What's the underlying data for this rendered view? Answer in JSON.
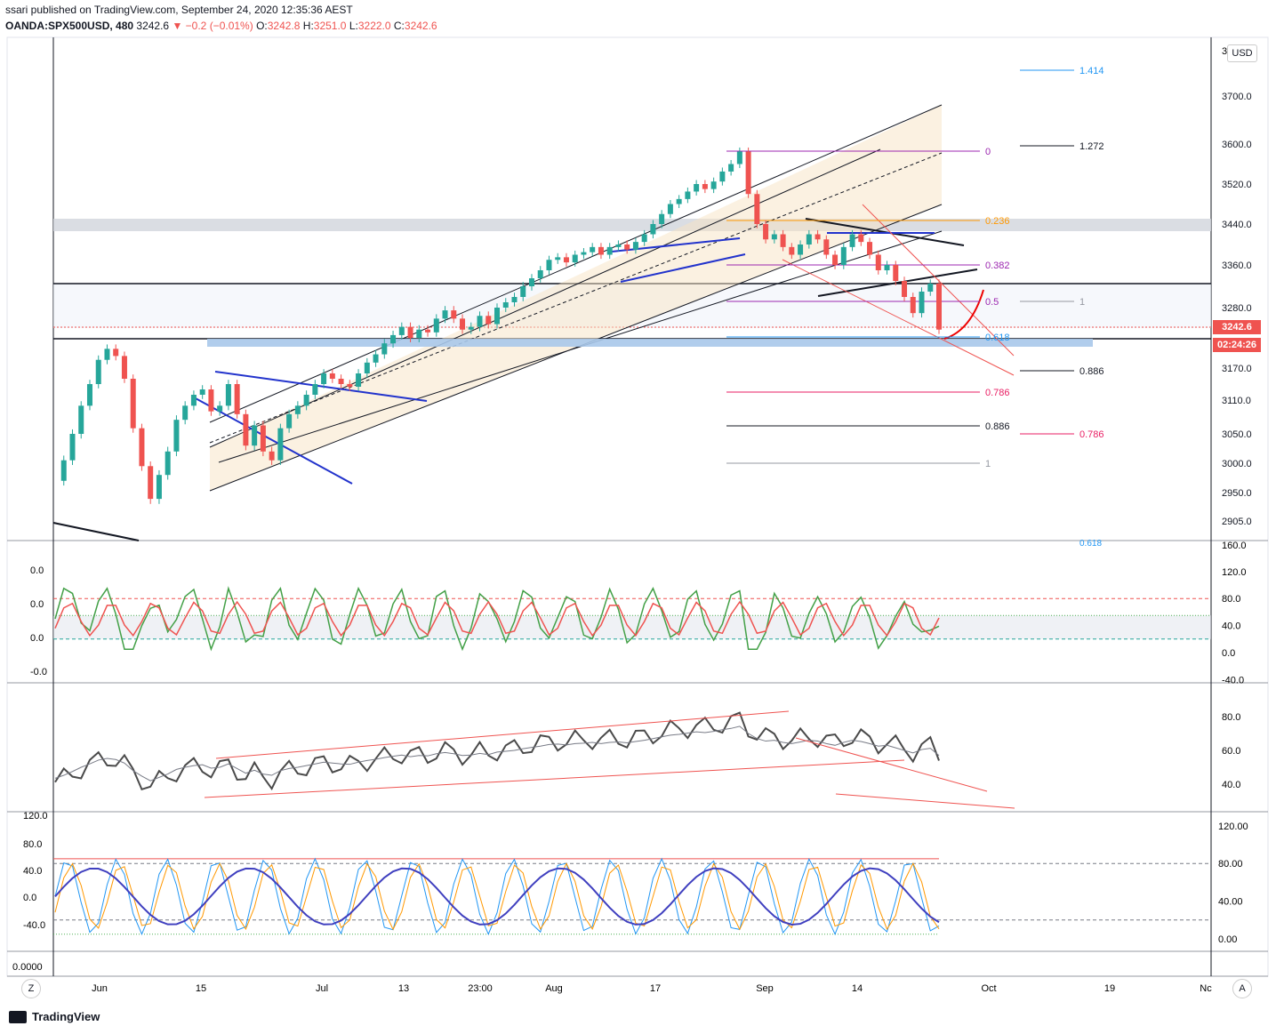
{
  "header": {
    "published": "ssari published on TradingView.com, September 24, 2020 12:35:36 AEST",
    "symbol": "OANDA:SPX500USD, 480",
    "last": "3242.6",
    "change": "▼ −0.2 (−0.01%)",
    "o_label": "O:",
    "o": "3242.8",
    "h_label": "H:",
    "h": "3251.0",
    "l_label": "L:",
    "l": "3222.0",
    "c_label": "C:",
    "c": "3242.6"
  },
  "currency": "USD",
  "price_tag": "3242.6",
  "timer_tag": "02:24:26",
  "brand": "TradingView",
  "corner_left": "Z",
  "corner_right": "A",
  "colors": {
    "up": "#26a69a",
    "down": "#ef5350",
    "channel": "#f8e3c4",
    "support": "#a9c8ea",
    "fib_purple": "#9c27b0",
    "fib_orange": "#ff9800",
    "fib_pink": "#e91e63",
    "fib_blue": "#2196f3"
  },
  "chart_data": [
    {
      "type": "candlestick",
      "pane": "price",
      "yticks": [
        "3700.0",
        "3600.0",
        "3520.0",
        "3440.0",
        "3360.0",
        "3280.0",
        "3170.0",
        "3110.0",
        "3050.0",
        "3000.0",
        "2950.0",
        "2905.0"
      ],
      "y_top_partial": "3",
      "xticks": [
        "Jun",
        "15",
        "Jul",
        "13",
        "23:00",
        "Aug",
        "17",
        "Sep",
        "14",
        "Oct",
        "19",
        "Nc"
      ],
      "fib_labels_left": [
        "0",
        "0.236",
        "0.382",
        "0.5",
        "0.618",
        "0.786",
        "0.886",
        "1"
      ],
      "fib_labels_right": [
        "1.414",
        "1.272",
        "1",
        "0.886",
        "0.786"
      ],
      "bottom_partial_label": "0.618",
      "close_series": [
        2970,
        3005,
        3050,
        3100,
        3140,
        3185,
        3205,
        3192,
        3150,
        3060,
        2995,
        2940,
        2980,
        3020,
        3075,
        3100,
        3120,
        3130,
        3090,
        3100,
        3140,
        3085,
        3030,
        3065,
        3020,
        3005,
        3060,
        3085,
        3100,
        3120,
        3140,
        3160,
        3150,
        3140,
        3135,
        3160,
        3180,
        3195,
        3215,
        3230,
        3245,
        3225,
        3240,
        3235,
        3260,
        3275,
        3260,
        3240,
        3245,
        3265,
        3250,
        3280,
        3290,
        3300,
        3320,
        3335,
        3350,
        3370,
        3375,
        3365,
        3380,
        3385,
        3395,
        3380,
        3395,
        3400,
        3390,
        3405,
        3420,
        3440,
        3460,
        3480,
        3490,
        3505,
        3520,
        3510,
        3525,
        3545,
        3560,
        3585,
        3500,
        3440,
        3410,
        3420,
        3395,
        3380,
        3400,
        3420,
        3410,
        3380,
        3360,
        3395,
        3420,
        3405,
        3380,
        3350,
        3360,
        3330,
        3300,
        3270,
        3310,
        3325,
        3240
      ],
      "overlay_values": [
        "3242.6"
      ]
    },
    {
      "type": "line",
      "pane": "oscillator_1",
      "yticks_right": [
        "120.0",
        "80.0",
        "40.0",
        "0.0",
        "-40.0"
      ],
      "yticks_left": [
        "0.0",
        "0.0",
        "0.0",
        "-0.0"
      ],
      "top_partial": "160.0",
      "levels": [
        80,
        55,
        20
      ]
    },
    {
      "type": "line",
      "pane": "oscillator_2",
      "yticks_right": [
        "80.0",
        "60.0",
        "40.0"
      ]
    },
    {
      "type": "line",
      "pane": "oscillator_3",
      "yticks_right": [
        "120.00",
        "80.00",
        "40.00",
        "0.00"
      ],
      "yticks_left": [
        "120.0",
        "80.0",
        "40.0",
        "0.0",
        "-40.0"
      ],
      "levels": [
        85,
        80,
        20,
        5
      ]
    },
    {
      "type": "line",
      "pane": "oscillator_4",
      "yticks_left": [
        "0.0000"
      ]
    }
  ]
}
